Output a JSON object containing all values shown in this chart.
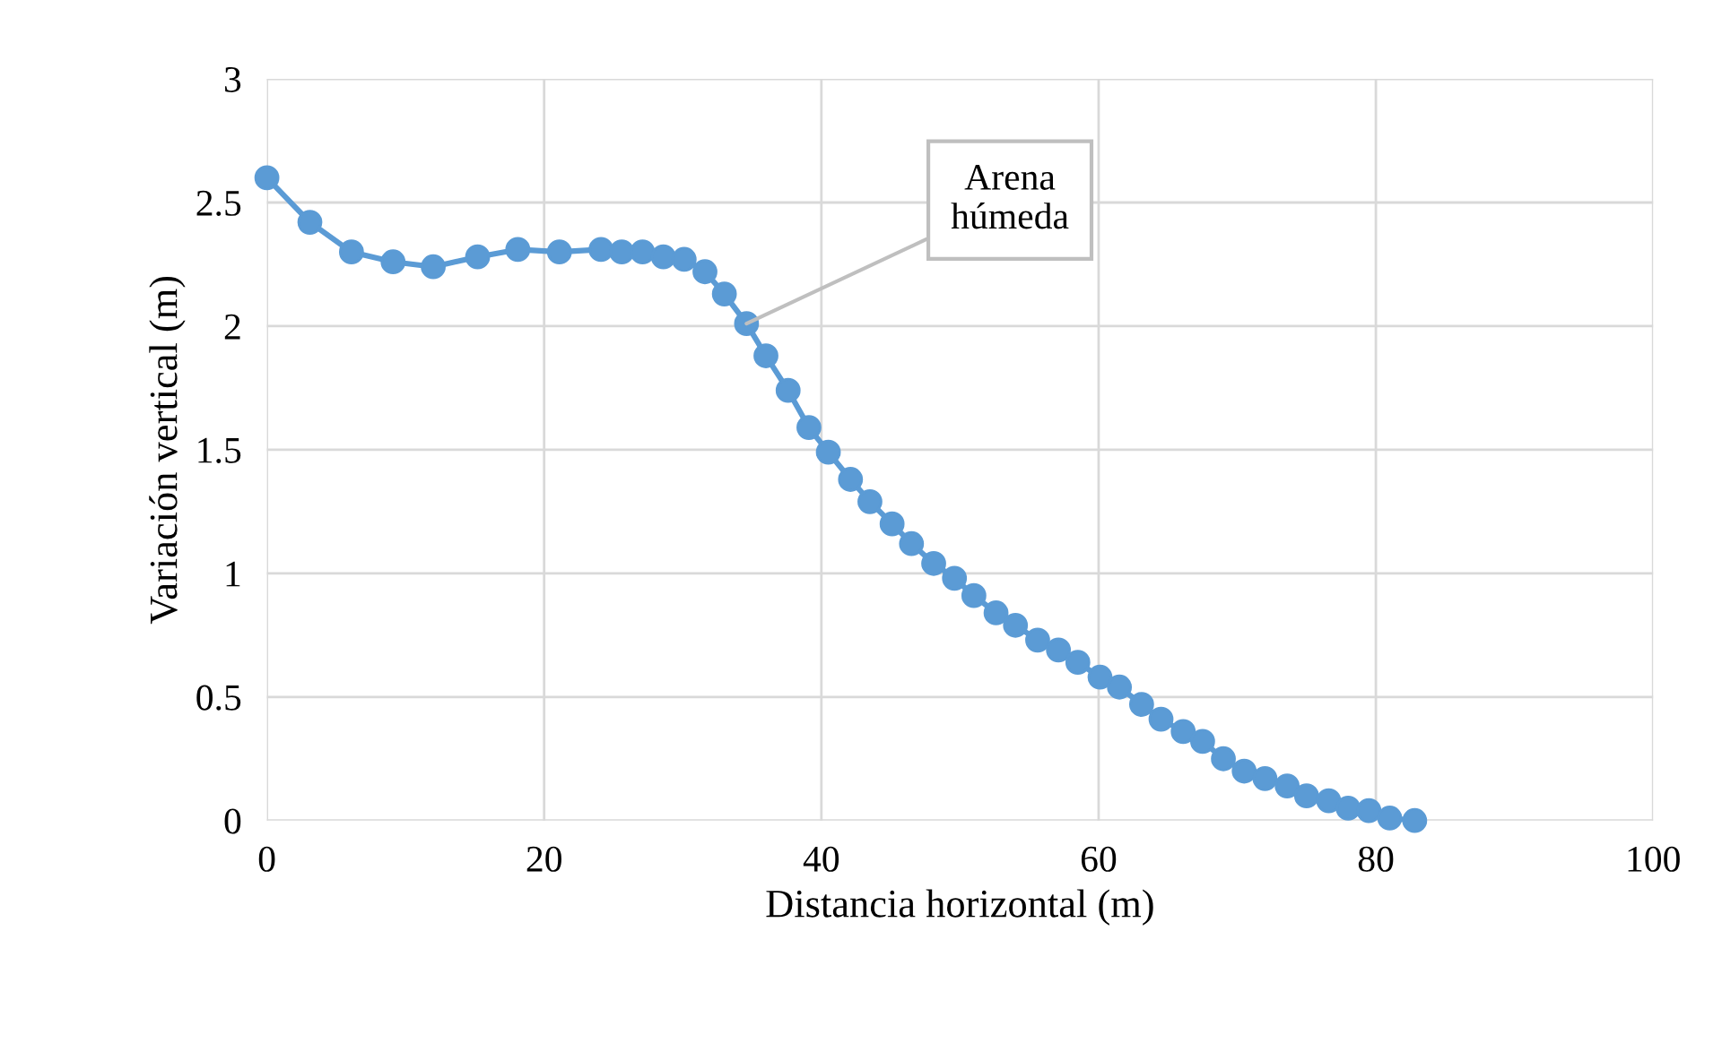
{
  "chart_data": {
    "type": "line",
    "xlabel": "Distancia horizontal (m)",
    "ylabel": "Variación vertical (m)",
    "x": [
      0,
      3.1,
      6.1,
      9.1,
      12.0,
      15.2,
      18.1,
      21.1,
      24.1,
      25.6,
      27.1,
      28.6,
      30.1,
      31.6,
      33.0,
      34.6,
      36.0,
      37.6,
      39.1,
      40.5,
      42.1,
      43.5,
      45.1,
      46.5,
      48.1,
      49.6,
      51.0,
      52.6,
      54.0,
      55.6,
      57.1,
      58.5,
      60.1,
      61.5,
      63.1,
      64.5,
      66.1,
      67.5,
      69.0,
      70.5,
      72.0,
      73.6,
      75.0,
      76.6,
      78.0,
      79.5,
      81.0,
      82.8
    ],
    "series": [
      {
        "color": "#5b9bd5",
        "values": [
          2.6,
          2.42,
          2.3,
          2.26,
          2.24,
          2.28,
          2.31,
          2.3,
          2.31,
          2.3,
          2.3,
          2.28,
          2.27,
          2.22,
          2.13,
          2.01,
          1.88,
          1.74,
          1.59,
          1.49,
          1.38,
          1.29,
          1.2,
          1.12,
          1.04,
          0.98,
          0.91,
          0.84,
          0.79,
          0.73,
          0.69,
          0.64,
          0.58,
          0.54,
          0.47,
          0.41,
          0.36,
          0.32,
          0.25,
          0.2,
          0.17,
          0.14,
          0.1,
          0.08,
          0.05,
          0.04,
          0.01,
          0.0
        ]
      }
    ],
    "xlim": [
      0,
      100
    ],
    "xticks": [
      0,
      20,
      40,
      60,
      80,
      100
    ],
    "ylim": [
      0,
      3
    ],
    "yticks": [
      0,
      0.5,
      1,
      1.5,
      2,
      2.5,
      3
    ],
    "grid": true,
    "marker": "circle",
    "line_style": "solid",
    "annotations": [
      {
        "text": "Arena\nhúmeda",
        "x": 34.6,
        "y": 2.01
      }
    ]
  }
}
